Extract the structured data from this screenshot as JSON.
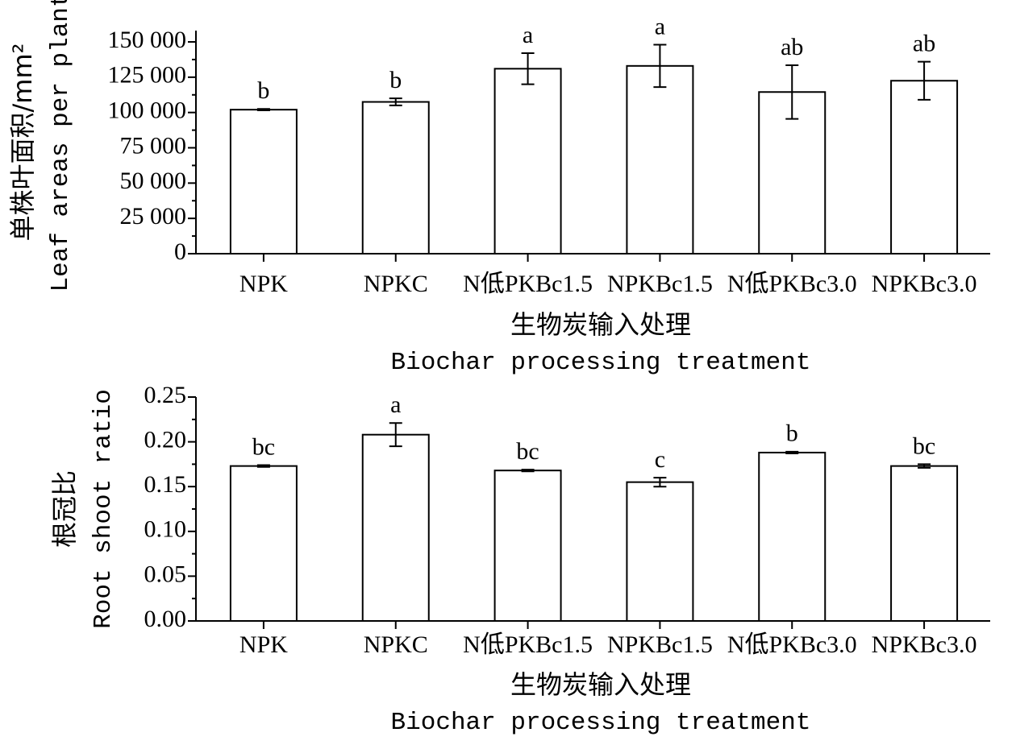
{
  "chart_data": [
    {
      "type": "bar",
      "ylabel": [
        "单株叶面积/mm²",
        "Leaf areas per plant"
      ],
      "xlabel": [
        "生物炭输入处理",
        "Biochar processing treatment"
      ],
      "categories": [
        "NPK",
        "NPKC",
        "N低PKBc1.5",
        "NPKBc1.5",
        "N低PKBc3.0",
        "NPKBc3.0"
      ],
      "values": [
        102000,
        107500,
        131000,
        133000,
        114500,
        122500
      ],
      "errors": [
        500,
        2500,
        11000,
        15000,
        19000,
        13500
      ],
      "letters": [
        "b",
        "b",
        "a",
        "a",
        "ab",
        "ab"
      ],
      "color": "#ffffff",
      "ylim": [
        0,
        158000
      ],
      "yticks": [
        0,
        {
          "value": 25000,
          "label": "25 000"
        },
        {
          "value": 50000,
          "label": "50 000"
        },
        {
          "value": 75000,
          "label": "75 000"
        },
        {
          "value": 100000,
          "label": "100 000"
        },
        {
          "value": 125000,
          "label": "125 000"
        },
        {
          "value": 150000,
          "label": "150 000"
        }
      ]
    },
    {
      "type": "bar",
      "ylabel": [
        "根冠比",
        "Root shoot ratio"
      ],
      "xlabel": [
        "生物炭输入处理",
        "Biochar processing treatment"
      ],
      "categories": [
        "NPK",
        "NPKC",
        "N低PKBc1.5",
        "NPKBc1.5",
        "N低PKBc3.0",
        "NPKBc3.0"
      ],
      "values": [
        0.173,
        0.208,
        0.168,
        0.155,
        0.188,
        0.173
      ],
      "errors": [
        0.001,
        0.013,
        0.001,
        0.005,
        0.001,
        0.002
      ],
      "letters": [
        "bc",
        "a",
        "bc",
        "c",
        "b",
        "bc"
      ],
      "color": "#ffffff",
      "ylim": [
        0,
        0.25
      ],
      "yticks": [
        {
          "value": 0,
          "label": "0.00"
        },
        0.05,
        {
          "value": 0.1,
          "label": "0.10"
        },
        0.15,
        {
          "value": 0.2,
          "label": "0.20"
        },
        0.25
      ]
    }
  ]
}
